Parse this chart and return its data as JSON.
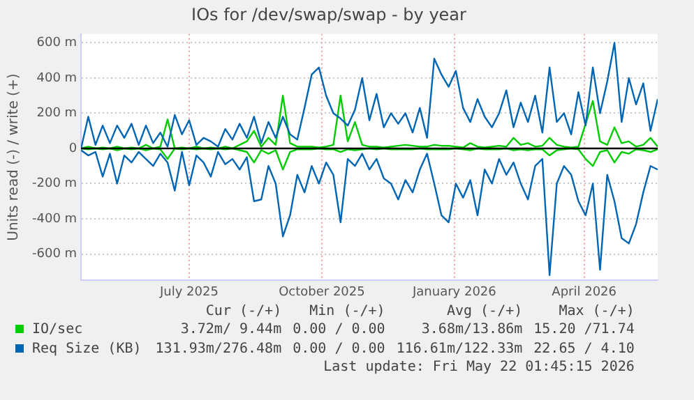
{
  "chart_data": {
    "type": "line",
    "title": "IOs for /dev/swap/swap - by year",
    "ylabel": "Units read (-) / write (+)",
    "x": [
      "2025-04-17",
      "2025-04-22",
      "2025-04-27",
      "2025-05-02",
      "2025-05-07",
      "2025-05-12",
      "2025-05-17",
      "2025-05-22",
      "2025-05-27",
      "2025-06-01",
      "2025-06-06",
      "2025-06-11",
      "2025-06-16",
      "2025-06-21",
      "2025-06-26",
      "2025-07-01",
      "2025-07-06",
      "2025-07-11",
      "2025-07-16",
      "2025-07-21",
      "2025-07-26",
      "2025-07-31",
      "2025-08-05",
      "2025-08-10",
      "2025-08-15",
      "2025-08-20",
      "2025-08-25",
      "2025-08-30",
      "2025-09-04",
      "2025-09-09",
      "2025-09-14",
      "2025-09-19",
      "2025-09-24",
      "2025-09-29",
      "2025-10-04",
      "2025-10-09",
      "2025-10-14",
      "2025-10-19",
      "2025-10-24",
      "2025-10-29",
      "2025-11-03",
      "2025-11-08",
      "2025-11-13",
      "2025-11-18",
      "2025-11-23",
      "2025-11-28",
      "2025-12-03",
      "2025-12-08",
      "2025-12-13",
      "2025-12-18",
      "2025-12-23",
      "2025-12-28",
      "2026-01-02",
      "2026-01-07",
      "2026-01-12",
      "2026-01-17",
      "2026-01-22",
      "2026-01-27",
      "2026-02-01",
      "2026-02-06",
      "2026-02-11",
      "2026-02-16",
      "2026-02-21",
      "2026-02-26",
      "2026-03-03",
      "2026-03-08",
      "2026-03-13",
      "2026-03-18",
      "2026-03-23",
      "2026-03-28",
      "2026-04-02",
      "2026-04-07",
      "2026-04-12",
      "2026-04-17",
      "2026-04-22",
      "2026-04-27",
      "2026-05-02",
      "2026-05-07",
      "2026-05-12",
      "2026-05-17",
      "2026-05-22"
    ],
    "series": [
      {
        "name": "Req Size (KB)",
        "color": "#0066b3",
        "values": [
          0,
          180,
          20,
          130,
          30,
          130,
          60,
          140,
          20,
          130,
          30,
          90,
          10,
          190,
          80,
          160,
          20,
          60,
          40,
          10,
          110,
          50,
          140,
          60,
          180,
          30,
          150,
          60,
          180,
          80,
          50,
          230,
          420,
          460,
          300,
          200,
          170,
          130,
          220,
          400,
          160,
          310,
          120,
          200,
          140,
          200,
          90,
          230,
          60,
          510,
          420,
          350,
          440,
          230,
          150,
          280,
          180,
          120,
          200,
          330,
          120,
          260,
          150,
          300,
          90,
          460,
          150,
          200,
          80,
          320,
          130,
          460,
          200,
          380,
          600,
          150,
          400,
          250,
          370,
          100,
          280
        ]
      },
      {
        "color": "#0066b3",
        "values": [
          -10,
          -40,
          -20,
          -160,
          -30,
          -200,
          -40,
          -80,
          -20,
          -60,
          -100,
          -30,
          -80,
          -240,
          -20,
          -210,
          -40,
          -80,
          -160,
          -20,
          -90,
          -60,
          -120,
          -50,
          -300,
          -290,
          -100,
          -200,
          -500,
          -380,
          -150,
          -250,
          -100,
          -200,
          -80,
          -150,
          -420,
          -60,
          -100,
          -30,
          -120,
          -60,
          -170,
          -200,
          -290,
          -180,
          -250,
          -120,
          -30,
          -200,
          -380,
          -420,
          -200,
          -280,
          -180,
          -380,
          -120,
          -200,
          -60,
          -150,
          -80,
          -200,
          -290,
          -100,
          -60,
          -720,
          -200,
          -100,
          -150,
          -300,
          -380,
          -200,
          -690,
          -150,
          -300,
          -510,
          -540,
          -430,
          -250,
          -100,
          -120
        ]
      },
      {
        "name": "IO/sec",
        "color": "#00cc00",
        "values": [
          0,
          10,
          0,
          5,
          0,
          10,
          0,
          5,
          0,
          20,
          0,
          10,
          165,
          0,
          5,
          0,
          10,
          0,
          5,
          0,
          10,
          0,
          20,
          40,
          100,
          10,
          60,
          20,
          300,
          30,
          10,
          10,
          10,
          5,
          10,
          20,
          300,
          40,
          150,
          20,
          10,
          10,
          5,
          10,
          15,
          20,
          15,
          10,
          10,
          20,
          15,
          15,
          10,
          5,
          30,
          10,
          5,
          10,
          15,
          10,
          60,
          20,
          30,
          10,
          15,
          60,
          20,
          10,
          5,
          10,
          140,
          270,
          40,
          20,
          120,
          30,
          40,
          10,
          20,
          60,
          10
        ]
      },
      {
        "color": "#00cc00",
        "values": [
          0,
          -5,
          0,
          -5,
          0,
          -10,
          0,
          -5,
          0,
          -10,
          0,
          -5,
          -60,
          0,
          -5,
          0,
          -5,
          0,
          -5,
          0,
          -5,
          0,
          -10,
          -20,
          -80,
          -10,
          -30,
          -10,
          -120,
          -20,
          -5,
          -5,
          -5,
          0,
          -5,
          -5,
          -20,
          -5,
          -10,
          -5,
          0,
          -5,
          0,
          -5,
          -5,
          -5,
          -5,
          0,
          -5,
          -5,
          -5,
          -5,
          0,
          -5,
          -10,
          0,
          -5,
          -5,
          -5,
          0,
          -10,
          -5,
          -10,
          -5,
          -5,
          -40,
          -10,
          -5,
          0,
          -5,
          -60,
          -100,
          -20,
          -10,
          -80,
          -20,
          -30,
          -5,
          -10,
          -20,
          -5
        ]
      }
    ],
    "xlim": [
      "2025-04-17",
      "2026-05-22"
    ],
    "xticks": [
      {
        "value": "2025-07-01",
        "label": "July 2025"
      },
      {
        "value": "2025-10-01",
        "label": "October 2025"
      },
      {
        "value": "2026-01-01",
        "label": "January 2026"
      },
      {
        "value": "2026-04-01",
        "label": "April 2026"
      }
    ],
    "ylim": [
      -750,
      650
    ],
    "yticks": [
      {
        "value": -600,
        "label": "-600 m"
      },
      {
        "value": -400,
        "label": "-400 m"
      },
      {
        "value": -200,
        "label": "-200 m"
      },
      0,
      {
        "value": 200,
        "label": "200 m"
      },
      {
        "value": 400,
        "label": "400 m"
      },
      {
        "value": 600,
        "label": "600 m"
      }
    ],
    "ref_lines": [
      {
        "axis": "y",
        "value": 0,
        "color": "#000000"
      }
    ],
    "annotations": [
      "Cur (-/+)",
      "Min (-/+)",
      "Avg (-/+)",
      "Max (-/+)",
      "3.72m/ 9.44m",
      "0.00 / 0.00",
      "3.68m/13.86m",
      "15.20 /71.74",
      "131.93m/276.48m",
      "0.00 / 0.00",
      "116.61m/122.33m",
      "22.65 / 4.10",
      "Last update: Fri May 22 01:45:15 2026"
    ],
    "grid": true,
    "legend": "bottom",
    "marker": "none",
    "line_style": "solid"
  }
}
